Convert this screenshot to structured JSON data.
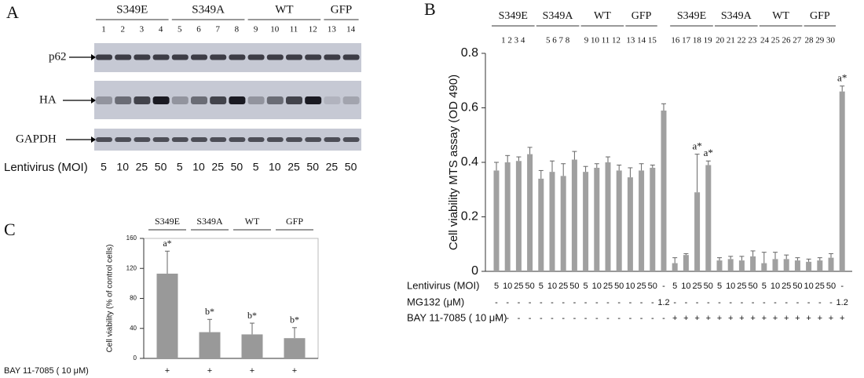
{
  "panel_a": {
    "label": "A",
    "groups": [
      "S349E",
      "S349A",
      "WT",
      "GFP"
    ],
    "lanes": [
      1,
      2,
      3,
      4,
      5,
      6,
      7,
      8,
      9,
      10,
      11,
      12,
      13,
      14
    ],
    "rows": [
      "p62",
      "HA",
      "GAPDH"
    ],
    "moi_label": "Lentivirus (MOI)",
    "moi": [
      5,
      10,
      25,
      50,
      5,
      10,
      25,
      50,
      5,
      10,
      25,
      50,
      25,
      50
    ]
  },
  "chart_data": [
    {
      "type": "bar",
      "panel": "B",
      "ylabel": "Cell viability MTS assay (OD 490)",
      "ylim": [
        0,
        0.8
      ],
      "yticks": [
        0,
        0.2,
        0.4,
        0.6,
        0.8
      ],
      "color": "#a0a0a0",
      "groups": [
        {
          "name": "S349E",
          "lanes": "1  2  3  4"
        },
        {
          "name": "S349A",
          "lanes": "5  6  7  8"
        },
        {
          "name": "WT",
          "lanes": "9 10 11 12"
        },
        {
          "name": "GFP",
          "lanes": "13 14 15"
        },
        {
          "name": "S349E",
          "lanes": "16 17 18 19"
        },
        {
          "name": "S349A",
          "lanes": "20 21 22 23"
        },
        {
          "name": "WT",
          "lanes": "24 25 26 27"
        },
        {
          "name": "GFP",
          "lanes": "28 29 30"
        }
      ],
      "category_label": "Lentivirus (MOI)",
      "categories": [
        "5",
        "10",
        "25",
        "50",
        "5",
        "10",
        "25",
        "50",
        "5",
        "10",
        "25",
        "50",
        "10",
        "25",
        "50",
        "-",
        "5",
        "10",
        "25",
        "50",
        "5",
        "10",
        "25",
        "50",
        "5",
        "10",
        "25",
        "50",
        "10",
        "25",
        "50",
        "-"
      ],
      "rows": [
        {
          "name": "MG132 (μM)",
          "values": [
            "-",
            "-",
            "-",
            "-",
            "-",
            "-",
            "-",
            "-",
            "-",
            "-",
            "-",
            "-",
            "-",
            "-",
            "-",
            "1.2",
            "-",
            "-",
            "-",
            "-",
            "-",
            "-",
            "-",
            "-",
            "-",
            "-",
            "-",
            "-",
            "-",
            "-",
            "-",
            "1.2"
          ]
        },
        {
          "name": "BAY 11-7085 ( 10 μM)",
          "values": [
            "-",
            "-",
            "-",
            "-",
            "-",
            "-",
            "-",
            "-",
            "-",
            "-",
            "-",
            "-",
            "-",
            "-",
            "-",
            "-",
            "+",
            "+",
            "+",
            "+",
            "+",
            "+",
            "+",
            "+",
            "+",
            "+",
            "+",
            "+",
            "+",
            "+",
            "+",
            "+"
          ]
        }
      ],
      "values": [
        0.37,
        0.4,
        0.405,
        0.43,
        0.34,
        0.365,
        0.35,
        0.41,
        0.365,
        0.38,
        0.4,
        0.37,
        0.345,
        0.37,
        0.38,
        0.59,
        0.03,
        0.06,
        0.29,
        0.39,
        0.04,
        0.045,
        0.04,
        0.055,
        0.03,
        0.045,
        0.045,
        0.04,
        0.035,
        0.04,
        0.05,
        0.66
      ],
      "errors": [
        0.03,
        0.025,
        0.015,
        0.025,
        0.03,
        0.04,
        0.045,
        0.03,
        0.02,
        0.015,
        0.02,
        0.02,
        0.035,
        0.025,
        0.01,
        0.025,
        0.02,
        0.005,
        0.14,
        0.015,
        0.01,
        0.01,
        0.015,
        0.02,
        0.04,
        0.025,
        0.015,
        0.01,
        0.01,
        0.01,
        0.015,
        0.02
      ],
      "annotations": [
        null,
        null,
        null,
        null,
        null,
        null,
        null,
        null,
        null,
        null,
        null,
        null,
        null,
        null,
        null,
        null,
        null,
        null,
        "a*",
        "a*",
        null,
        null,
        null,
        null,
        null,
        null,
        null,
        null,
        null,
        null,
        null,
        "a*"
      ]
    },
    {
      "type": "bar",
      "panel": "C",
      "ylabel": "Cell viability (% of control cells)",
      "ylim": [
        0,
        160
      ],
      "yticks": [
        0,
        40,
        80,
        120,
        160
      ],
      "color": "#999999",
      "categories": [
        "S349E",
        "S349A",
        "WT",
        "GFP"
      ],
      "rows": [
        {
          "name": "BAY 11-7085 ( 10 μM)",
          "values": [
            "+",
            "+",
            "+",
            "+"
          ]
        }
      ],
      "values": [
        113,
        35,
        32,
        27
      ],
      "errors": [
        30,
        17,
        15,
        14
      ],
      "annotations": [
        "a*",
        "b*",
        "b*",
        "b*"
      ]
    }
  ]
}
